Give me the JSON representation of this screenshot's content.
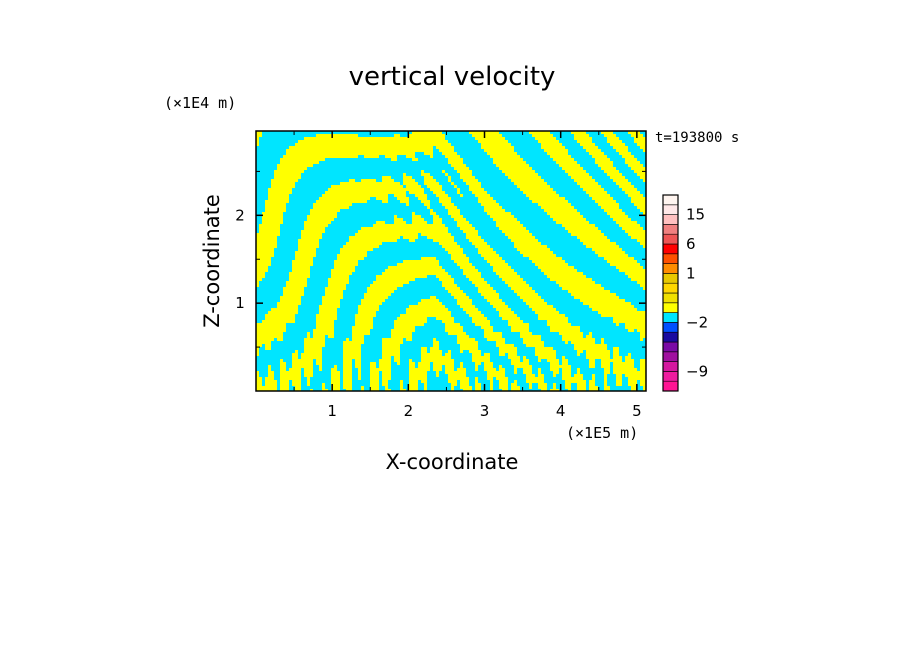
{
  "chart_data": {
    "type": "heatmap",
    "title": "vertical velocity",
    "xlabel": "X-coordinate",
    "ylabel": "Z-coordinate",
    "x_unit": "(×1E5 m)",
    "y_unit": "(×1E4 m)",
    "time_label": "t=193800 s",
    "xlim": [
      0,
      5.12
    ],
    "ylim": [
      0,
      2.96
    ],
    "x_ticks": [
      {
        "value": 1,
        "label": "1"
      },
      {
        "value": 2,
        "label": "2"
      },
      {
        "value": 3,
        "label": "3"
      },
      {
        "value": 4,
        "label": "4"
      },
      {
        "value": 5,
        "label": "5"
      }
    ],
    "y_ticks": [
      {
        "value": 1,
        "label": "1"
      },
      {
        "value": 2,
        "label": "2"
      }
    ],
    "field_colors": {
      "positive": "#ffff00",
      "negative": "#00e5ff"
    },
    "colorbar": {
      "levels": [
        "-12",
        "-10.5",
        "-9",
        "-7.5",
        "-6",
        "-4.5",
        "-3",
        "-2",
        "-1.5",
        "-1",
        "0",
        "0.5",
        "1",
        "1.5",
        "3",
        "6",
        "9",
        "12",
        "15",
        "18",
        "24"
      ],
      "colors": [
        "#ff1493",
        "#ee1c9f",
        "#d4179f",
        "#a0109f",
        "#7a0aa5",
        "#1a0aa0",
        "#0050ff",
        "#00e5ff",
        "#ffff00",
        "#f0e000",
        "#ffd700",
        "#e8c800",
        "#ff8c00",
        "#ff5000",
        "#ff0000",
        "#ee5555",
        "#f08080",
        "#ffc0c0",
        "#ffe8e8",
        "#fff5f0"
      ],
      "labels": [
        {
          "value": "15",
          "label": "15"
        },
        {
          "value": "6",
          "label": "6"
        },
        {
          "value": "1",
          "label": "1"
        },
        {
          "value": "-2",
          "label": "−2"
        },
        {
          "value": "-9",
          "label": "−9"
        }
      ]
    }
  }
}
